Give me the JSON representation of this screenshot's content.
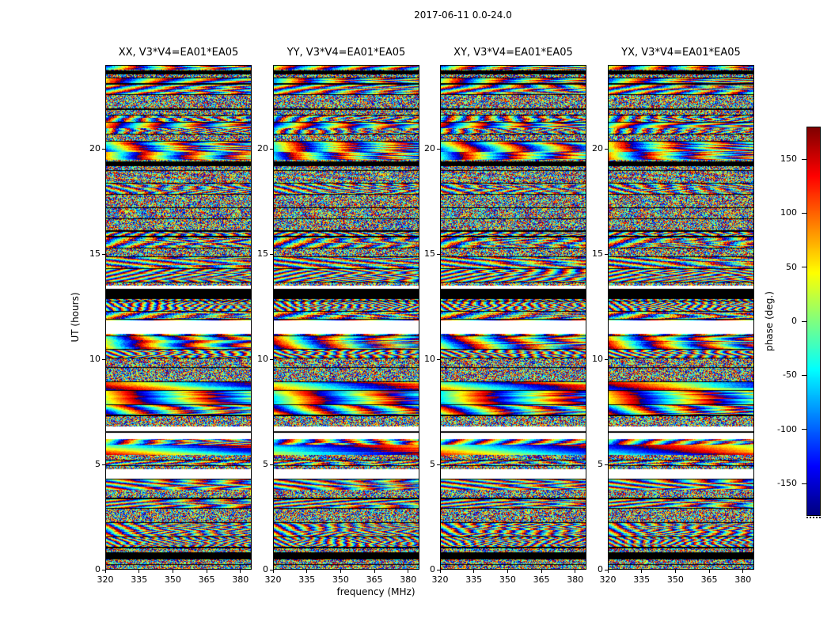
{
  "figure": {
    "suptitle": "2017-06-11 0.0-24.0",
    "background": "#ffffff"
  },
  "chart_data": {
    "type": "heatmap",
    "title": "2017-06-11 0.0-24.0",
    "xlabel": "frequency (MHz)",
    "ylabel": "UT (hours)",
    "xlim": [
      320,
      385
    ],
    "ylim": [
      0,
      24
    ],
    "xticks": [
      320,
      335,
      350,
      365,
      380
    ],
    "yticks": [
      0,
      5,
      10,
      15,
      20
    ],
    "grid": false,
    "panels": [
      {
        "title": "XX, V3*V4=EA01*EA05",
        "polarization": "XX",
        "baseline": "V3*V4=EA01*EA05"
      },
      {
        "title": "YY, V3*V4=EA01*EA05",
        "polarization": "YY",
        "baseline": "V3*V4=EA01*EA05"
      },
      {
        "title": "XY, V3*V4=EA01*EA05",
        "polarization": "XY",
        "baseline": "V3*V4=EA01*EA05"
      },
      {
        "title": "YX, V3*V4=EA01*EA05",
        "polarization": "YX",
        "baseline": "V3*V4=EA01*EA05"
      }
    ],
    "colorbar": {
      "label": "phase (deg.)",
      "vmin": -180,
      "vmax": 180,
      "ticks": [
        150,
        100,
        50,
        0,
        -50,
        -100,
        -150
      ],
      "colormap": "jet",
      "position": "right"
    },
    "content": "random interferometric visibility phase noise vs frequency (x) and UT time (y); horizontal scan blocks separated by thin black flagged rows",
    "time_gaps_white": [
      [
        13.35,
        13.52
      ],
      [
        11.2,
        11.85
      ],
      [
        6.2,
        6.78
      ],
      [
        4.3,
        4.75
      ]
    ],
    "flagged_black": [
      [
        23.6,
        23.78
      ],
      [
        19.2,
        19.45
      ],
      [
        12.88,
        13.35
      ],
      [
        6.5,
        6.58
      ],
      [
        0.45,
        0.78
      ]
    ],
    "texture_regions": [
      {
        "from": 10.3,
        "to": 11.2,
        "style": "smooth"
      },
      {
        "from": 11.85,
        "to": 12.85,
        "style": "fringe"
      },
      {
        "from": 7.3,
        "to": 9.2,
        "style": "smooth"
      }
    ]
  }
}
